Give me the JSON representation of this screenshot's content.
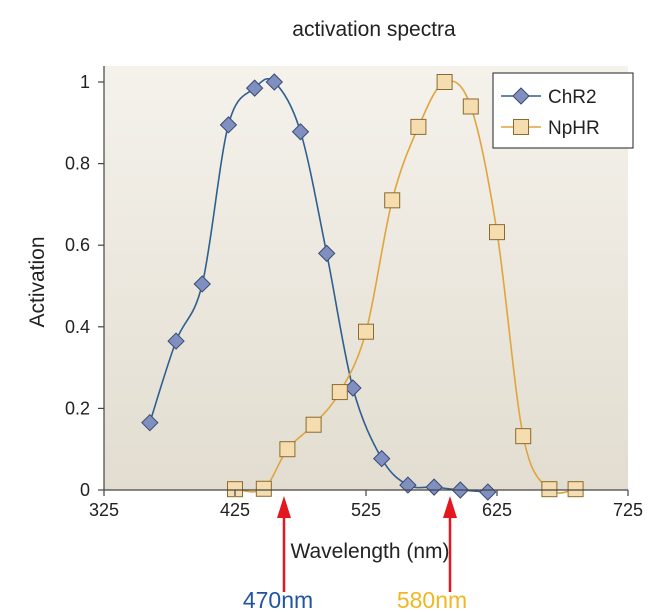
{
  "chart_data": {
    "type": "line",
    "title": "activation spectra",
    "xlabel": "Wavelength (nm)",
    "ylabel": "Activation",
    "xlim": [
      325,
      725
    ],
    "ylim": [
      0,
      1.02
    ],
    "xticks": [
      325,
      425,
      525,
      625,
      725
    ],
    "yticks": [
      0,
      0.2,
      0.4,
      0.6,
      0.8,
      1
    ],
    "yticklabels": [
      "0",
      "0.2",
      "0.4",
      "0.6",
      "0.8",
      "1"
    ],
    "grid": false,
    "legend": "top-right",
    "series": [
      {
        "name": "ChR2",
        "color": "#2f5f91",
        "marker": "diamond",
        "marker_fill": "#7f8fc0",
        "x": [
          360,
          380,
          400,
          420,
          440,
          455,
          475,
          495,
          515,
          537,
          557,
          577,
          597,
          618
        ],
        "y": [
          0.165,
          0.365,
          0.505,
          0.895,
          0.985,
          1.0,
          0.878,
          0.58,
          0.25,
          0.077,
          0.012,
          0.007,
          0.0,
          -0.005
        ]
      },
      {
        "name": "NpHR",
        "color": "#e1a43c",
        "marker": "square",
        "marker_fill": "#f6ddb0",
        "x": [
          425,
          447,
          465,
          485,
          505,
          525,
          545,
          565,
          585,
          605,
          625,
          645,
          665,
          685
        ],
        "y": [
          0.002,
          0.003,
          0.1,
          0.16,
          0.24,
          0.388,
          0.71,
          0.89,
          1.0,
          0.94,
          0.632,
          0.132,
          0.002,
          0.002
        ]
      }
    ],
    "annotations": [
      {
        "text": "470nm",
        "x": 470,
        "color": "#1f55a0"
      },
      {
        "text": "580nm",
        "x": 580,
        "color": "#f0b720"
      }
    ]
  }
}
